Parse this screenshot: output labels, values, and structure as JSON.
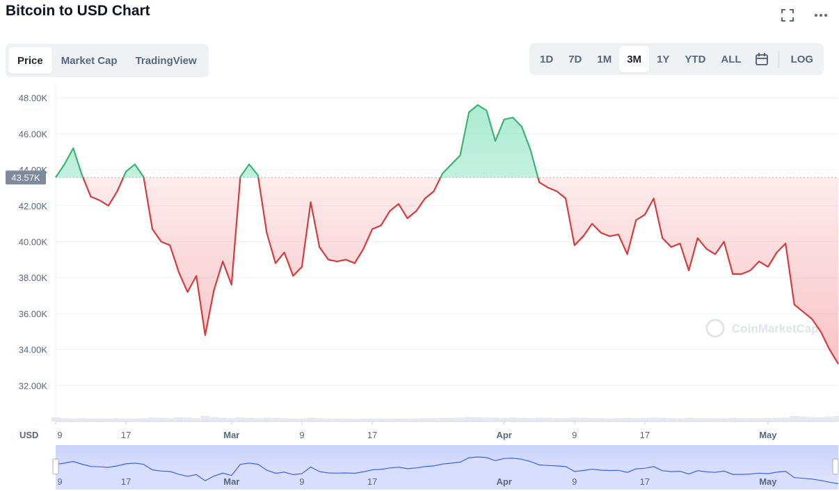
{
  "header": {
    "title": "Bitcoin to USD Chart"
  },
  "icons": {
    "fullscreen": "fullscreen-icon",
    "more": "more-icon",
    "calendar": "calendar-icon",
    "watermark": "coinmarketcap-logo-icon"
  },
  "tabs": [
    {
      "label": "Price",
      "active": true
    },
    {
      "label": "Market Cap",
      "active": false
    },
    {
      "label": "TradingView",
      "active": false
    }
  ],
  "ranges": [
    {
      "label": "1D",
      "active": false
    },
    {
      "label": "7D",
      "active": false
    },
    {
      "label": "1M",
      "active": false
    },
    {
      "label": "3M",
      "active": true
    },
    {
      "label": "1Y",
      "active": false
    },
    {
      "label": "YTD",
      "active": false
    },
    {
      "label": "ALL",
      "active": false
    }
  ],
  "log_label": "LOG",
  "currency_label": "USD",
  "watermark": "CoinMarketCap",
  "colors": {
    "up": "#16c784",
    "up_line": "#3cb371",
    "down": "#ea3943",
    "down_line": "#d83a3a",
    "navigator": "#3861fb"
  },
  "chart_data": {
    "type": "line",
    "title": "Bitcoin to USD Chart",
    "ylabel": "USD",
    "ylim": [
      30000,
      48800
    ],
    "yticks": [
      "32.00K",
      "34.00K",
      "36.00K",
      "38.00K",
      "40.00K",
      "42.00K",
      "44.00K",
      "46.00K",
      "48.00K"
    ],
    "reference_value": 43570,
    "reference_label": "43.57K",
    "xticks": [
      {
        "label": "9",
        "x": 0,
        "month": false
      },
      {
        "label": "17",
        "x": 8,
        "month": false
      },
      {
        "label": "Mar",
        "x": 20,
        "month": true
      },
      {
        "label": "9",
        "x": 28,
        "month": false
      },
      {
        "label": "17",
        "x": 36,
        "month": false
      },
      {
        "label": "Apr",
        "x": 51,
        "month": true
      },
      {
        "label": "9",
        "x": 59,
        "month": false
      },
      {
        "label": "17",
        "x": 67,
        "month": false
      },
      {
        "label": "May",
        "x": 81,
        "month": true
      }
    ],
    "x_range": [
      0,
      89
    ],
    "x": [
      0,
      1,
      2,
      3,
      4,
      5,
      6,
      7,
      8,
      9,
      10,
      11,
      12,
      13,
      14,
      15,
      16,
      17,
      18,
      19,
      20,
      21,
      22,
      23,
      24,
      25,
      26,
      27,
      28,
      29,
      30,
      31,
      32,
      33,
      34,
      35,
      36,
      37,
      38,
      39,
      40,
      41,
      42,
      43,
      44,
      45,
      46,
      47,
      48,
      49,
      50,
      51,
      52,
      53,
      54,
      55,
      56,
      57,
      58,
      59,
      60,
      61,
      62,
      63,
      64,
      65,
      66,
      67,
      68,
      69,
      70,
      71,
      72,
      73,
      74,
      75,
      76,
      77,
      78,
      79,
      80,
      81,
      82,
      83,
      84,
      85,
      86,
      87,
      88,
      89
    ],
    "values": [
      43570,
      44300,
      45200,
      43700,
      42500,
      42300,
      42000,
      42800,
      43900,
      44300,
      43600,
      40700,
      40000,
      39800,
      38300,
      37200,
      38100,
      34800,
      37300,
      38900,
      37600,
      43600,
      44300,
      43700,
      40500,
      38800,
      39400,
      38100,
      38600,
      42200,
      39700,
      39000,
      38900,
      39000,
      38800,
      39600,
      40700,
      40900,
      41700,
      42100,
      41300,
      41700,
      42400,
      42800,
      43800,
      44300,
      44800,
      47200,
      47600,
      47300,
      45600,
      46800,
      46900,
      46400,
      45100,
      43300,
      43000,
      42800,
      42400,
      39800,
      40300,
      41000,
      40500,
      40300,
      40400,
      39300,
      41200,
      41500,
      42400,
      40200,
      39700,
      39900,
      38400,
      40200,
      39600,
      39300,
      40000,
      38200,
      38200,
      38400,
      38900,
      38600,
      39400,
      39900,
      36500,
      36100,
      35700,
      35000,
      34000,
      33200
    ],
    "volume": [
      0.15,
      0.12,
      0.1,
      0.12,
      0.1,
      0.11,
      0.1,
      0.12,
      0.1,
      0.1,
      0.12,
      0.14,
      0.13,
      0.12,
      0.15,
      0.14,
      0.12,
      0.2,
      0.16,
      0.13,
      0.12,
      0.15,
      0.13,
      0.12,
      0.14,
      0.13,
      0.12,
      0.1,
      0.1,
      0.13,
      0.12,
      0.1,
      0.1,
      0.1,
      0.09,
      0.1,
      0.1,
      0.11,
      0.1,
      0.1,
      0.1,
      0.11,
      0.12,
      0.12,
      0.13,
      0.13,
      0.14,
      0.16,
      0.15,
      0.14,
      0.14,
      0.13,
      0.14,
      0.13,
      0.12,
      0.14,
      0.13,
      0.12,
      0.12,
      0.14,
      0.13,
      0.12,
      0.12,
      0.11,
      0.12,
      0.13,
      0.12,
      0.13,
      0.14,
      0.13,
      0.12,
      0.11,
      0.13,
      0.12,
      0.12,
      0.12,
      0.11,
      0.13,
      0.12,
      0.12,
      0.12,
      0.12,
      0.13,
      0.14,
      0.2,
      0.18,
      0.16,
      0.15,
      0.17,
      0.2
    ],
    "grid": true,
    "legend": "none"
  }
}
